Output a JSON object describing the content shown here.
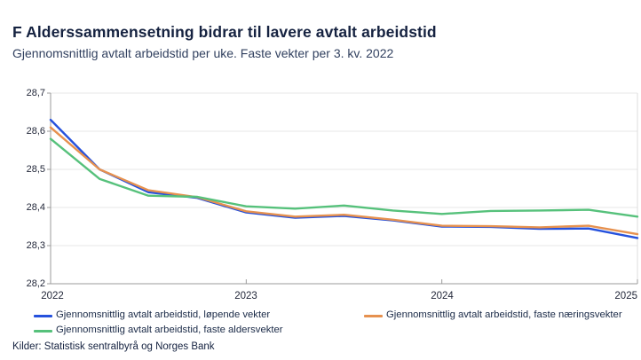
{
  "title": "F Alderssammensetning bidrar til lavere avtalt arbeidstid",
  "subtitle": "Gjennomsnittlig avtalt arbeidstid per uke. Faste vekter per 3. kv. 2022",
  "source": "Kilder: Statistisk sentralbyrå og Norges Bank",
  "colors": {
    "title_text": "#152240",
    "subtitle_text": "#31405f",
    "tick_text": "#23283a",
    "grid": "#e7e7e7",
    "axis": "#9b9b9b",
    "right_border": "#dcdcdc",
    "series_blue": "#2551dd",
    "series_orange": "#e6914f",
    "series_green": "#56c17b"
  },
  "legend": {
    "items": [
      {
        "label": "Gjennomsnittlig avtalt arbeidstid, løpende vekter",
        "color": "#2551dd"
      },
      {
        "label": "Gjennomsnittlig avtalt arbeidstid, faste næringsvekter",
        "color": "#e6914f"
      },
      {
        "label": "Gjennomsnittlig avtalt arbeidstid, faste aldersvekter",
        "color": "#56c17b"
      }
    ]
  },
  "chart_data": {
    "type": "line",
    "title": "F Alderssammensetning bidrar til lavere avtalt arbeidstid",
    "subtitle": "Gjennomsnittlig avtalt arbeidstid per uke. Faste vekter per 3. kv. 2022",
    "x": [
      "2022K1",
      "2022K2",
      "2022K3",
      "2022K4",
      "2023K1",
      "2023K2",
      "2023K3",
      "2023K4",
      "2024K1",
      "2024K2",
      "2024K3",
      "2024K4",
      "2025K1"
    ],
    "series": [
      {
        "name": "Gjennomsnittlig avtalt arbeidstid, løpende vekter",
        "color": "#2551dd",
        "values": [
          28.63,
          28.5,
          28.44,
          28.425,
          28.387,
          28.373,
          28.378,
          28.366,
          28.35,
          28.349,
          28.344,
          28.345,
          28.32
        ]
      },
      {
        "name": "Gjennomsnittlig avtalt arbeidstid, faste næringsvekter",
        "color": "#e6914f",
        "values": [
          28.61,
          28.5,
          28.445,
          28.427,
          28.39,
          28.376,
          28.381,
          28.368,
          28.352,
          28.351,
          28.348,
          28.352,
          28.33
        ]
      },
      {
        "name": "Gjennomsnittlig avtalt arbeidstid, faste aldersvekter",
        "color": "#56c17b",
        "values": [
          28.58,
          28.475,
          28.431,
          28.428,
          28.403,
          28.397,
          28.405,
          28.392,
          28.383,
          28.391,
          28.392,
          28.394,
          28.376
        ]
      }
    ],
    "ylim": [
      28.2,
      28.7
    ],
    "ytick_values": [
      28.2,
      28.3,
      28.4,
      28.5,
      28.6,
      28.7
    ],
    "yticks": [
      "28,2",
      "28,3",
      "28,4",
      "28,5",
      "28,6",
      "28,7"
    ],
    "xticks": [
      "2022",
      "2023",
      "2024",
      "2025"
    ],
    "xtick_indices": [
      0,
      4,
      8,
      12
    ],
    "grid": "horizontal",
    "legend_position": "bottom"
  }
}
